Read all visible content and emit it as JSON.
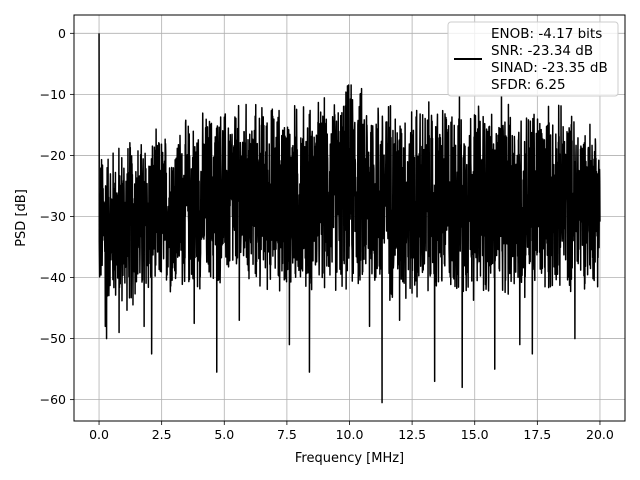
{
  "chart_data": {
    "type": "line",
    "xlabel": "Frequency [MHz]",
    "ylabel": "PSD [dB]",
    "xlim": [
      -1.0,
      21.0
    ],
    "ylim": [
      -63.5,
      3.0
    ],
    "x_ticks": [
      0.0,
      2.5,
      5.0,
      7.5,
      10.0,
      12.5,
      15.0,
      17.5,
      20.0
    ],
    "x_tick_labels": [
      "0.0",
      "2.5",
      "5.0",
      "7.5",
      "10.0",
      "12.5",
      "15.0",
      "17.5",
      "20.0"
    ],
    "y_ticks": [
      0,
      -10,
      -20,
      -30,
      -40,
      -50,
      -60
    ],
    "y_tick_labels": [
      "0",
      "−10",
      "−20",
      "−30",
      "−40",
      "−50",
      "−60"
    ],
    "grid": true,
    "legend_placement": "top-right",
    "legend_lines": [
      "ENOB: -4.17 bits",
      "SNR: -23.34 dB",
      "SINAD: -23.35 dB",
      "SFDR: 6.25"
    ],
    "series": [
      {
        "color": "#000000",
        "x_start": 0.0,
        "x_end": 20.0,
        "dc_peak_db": 0.0,
        "envelope_top": [
          {
            "x": 0.0,
            "y": -18
          },
          {
            "x": 1.0,
            "y": -16
          },
          {
            "x": 2.5,
            "y": -15
          },
          {
            "x": 3.5,
            "y": -13
          },
          {
            "x": 4.5,
            "y": -11
          },
          {
            "x": 6.0,
            "y": -10
          },
          {
            "x": 8.0,
            "y": -10
          },
          {
            "x": 9.5,
            "y": -9
          },
          {
            "x": 10.0,
            "y": -6
          },
          {
            "x": 11.0,
            "y": -8
          },
          {
            "x": 12.5,
            "y": -10
          },
          {
            "x": 14.5,
            "y": -9
          },
          {
            "x": 16.5,
            "y": -10
          },
          {
            "x": 18.0,
            "y": -10
          },
          {
            "x": 20.0,
            "y": -13
          }
        ],
        "envelope_bottom": [
          {
            "x": 0.0,
            "y": -45
          },
          {
            "x": 1.0,
            "y": -47
          },
          {
            "x": 2.5,
            "y": -44
          },
          {
            "x": 5.0,
            "y": -43
          },
          {
            "x": 7.5,
            "y": -44
          },
          {
            "x": 10.0,
            "y": -44
          },
          {
            "x": 12.5,
            "y": -46
          },
          {
            "x": 15.0,
            "y": -45
          },
          {
            "x": 17.5,
            "y": -45
          },
          {
            "x": 20.0,
            "y": -42
          }
        ],
        "deep_nulls": [
          {
            "x": 0.25,
            "y": -48
          },
          {
            "x": 0.3,
            "y": -50
          },
          {
            "x": 0.8,
            "y": -49
          },
          {
            "x": 1.8,
            "y": -48
          },
          {
            "x": 2.1,
            "y": -52.5
          },
          {
            "x": 3.8,
            "y": -47.5
          },
          {
            "x": 4.7,
            "y": -55.5
          },
          {
            "x": 5.6,
            "y": -47
          },
          {
            "x": 7.6,
            "y": -51
          },
          {
            "x": 8.4,
            "y": -55.5
          },
          {
            "x": 10.8,
            "y": -48
          },
          {
            "x": 11.3,
            "y": -60.5
          },
          {
            "x": 12.0,
            "y": -47
          },
          {
            "x": 13.4,
            "y": -57
          },
          {
            "x": 14.5,
            "y": -58
          },
          {
            "x": 15.8,
            "y": -55
          },
          {
            "x": 16.8,
            "y": -51
          },
          {
            "x": 17.3,
            "y": -52.5
          },
          {
            "x": 19.0,
            "y": -50
          }
        ]
      }
    ]
  }
}
